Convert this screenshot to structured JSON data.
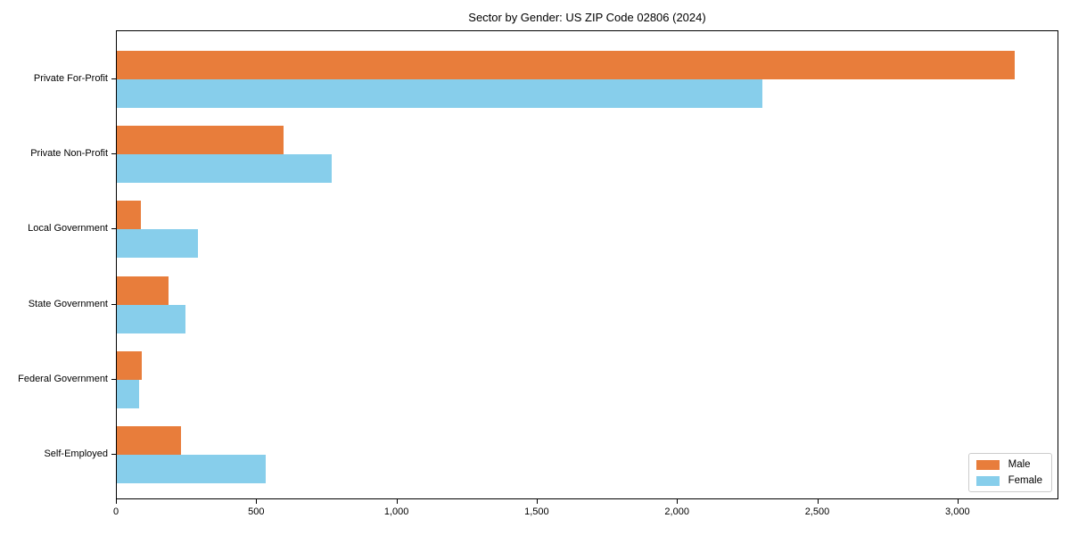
{
  "chart_data": {
    "type": "bar",
    "orientation": "horizontal",
    "title": "Sector by Gender: US ZIP Code 02806 (2024)",
    "categories": [
      "Private For-Profit",
      "Private Non-Profit",
      "Local Government",
      "State Government",
      "Federal Government",
      "Self-Employed"
    ],
    "series": [
      {
        "name": "Male",
        "color": "#e87d3b",
        "values": [
          3200,
          595,
          85,
          185,
          90,
          230
        ]
      },
      {
        "name": "Female",
        "color": "#87ceeb",
        "values": [
          2300,
          765,
          290,
          245,
          80,
          530
        ]
      }
    ],
    "xlabel": "",
    "ylabel": "",
    "xlim": [
      0,
      3360
    ],
    "xticks": [
      {
        "value": 0,
        "label": "0"
      },
      {
        "value": 500,
        "label": "500"
      },
      {
        "value": 1000,
        "label": "1,000"
      },
      {
        "value": 1500,
        "label": "1,500"
      },
      {
        "value": 2000,
        "label": "2,000"
      },
      {
        "value": 2500,
        "label": "2,500"
      },
      {
        "value": 3000,
        "label": "3,000"
      }
    ],
    "grid": false,
    "legend_position": "lower right",
    "axis_color": "#000000",
    "background_color": "#ffffff"
  }
}
